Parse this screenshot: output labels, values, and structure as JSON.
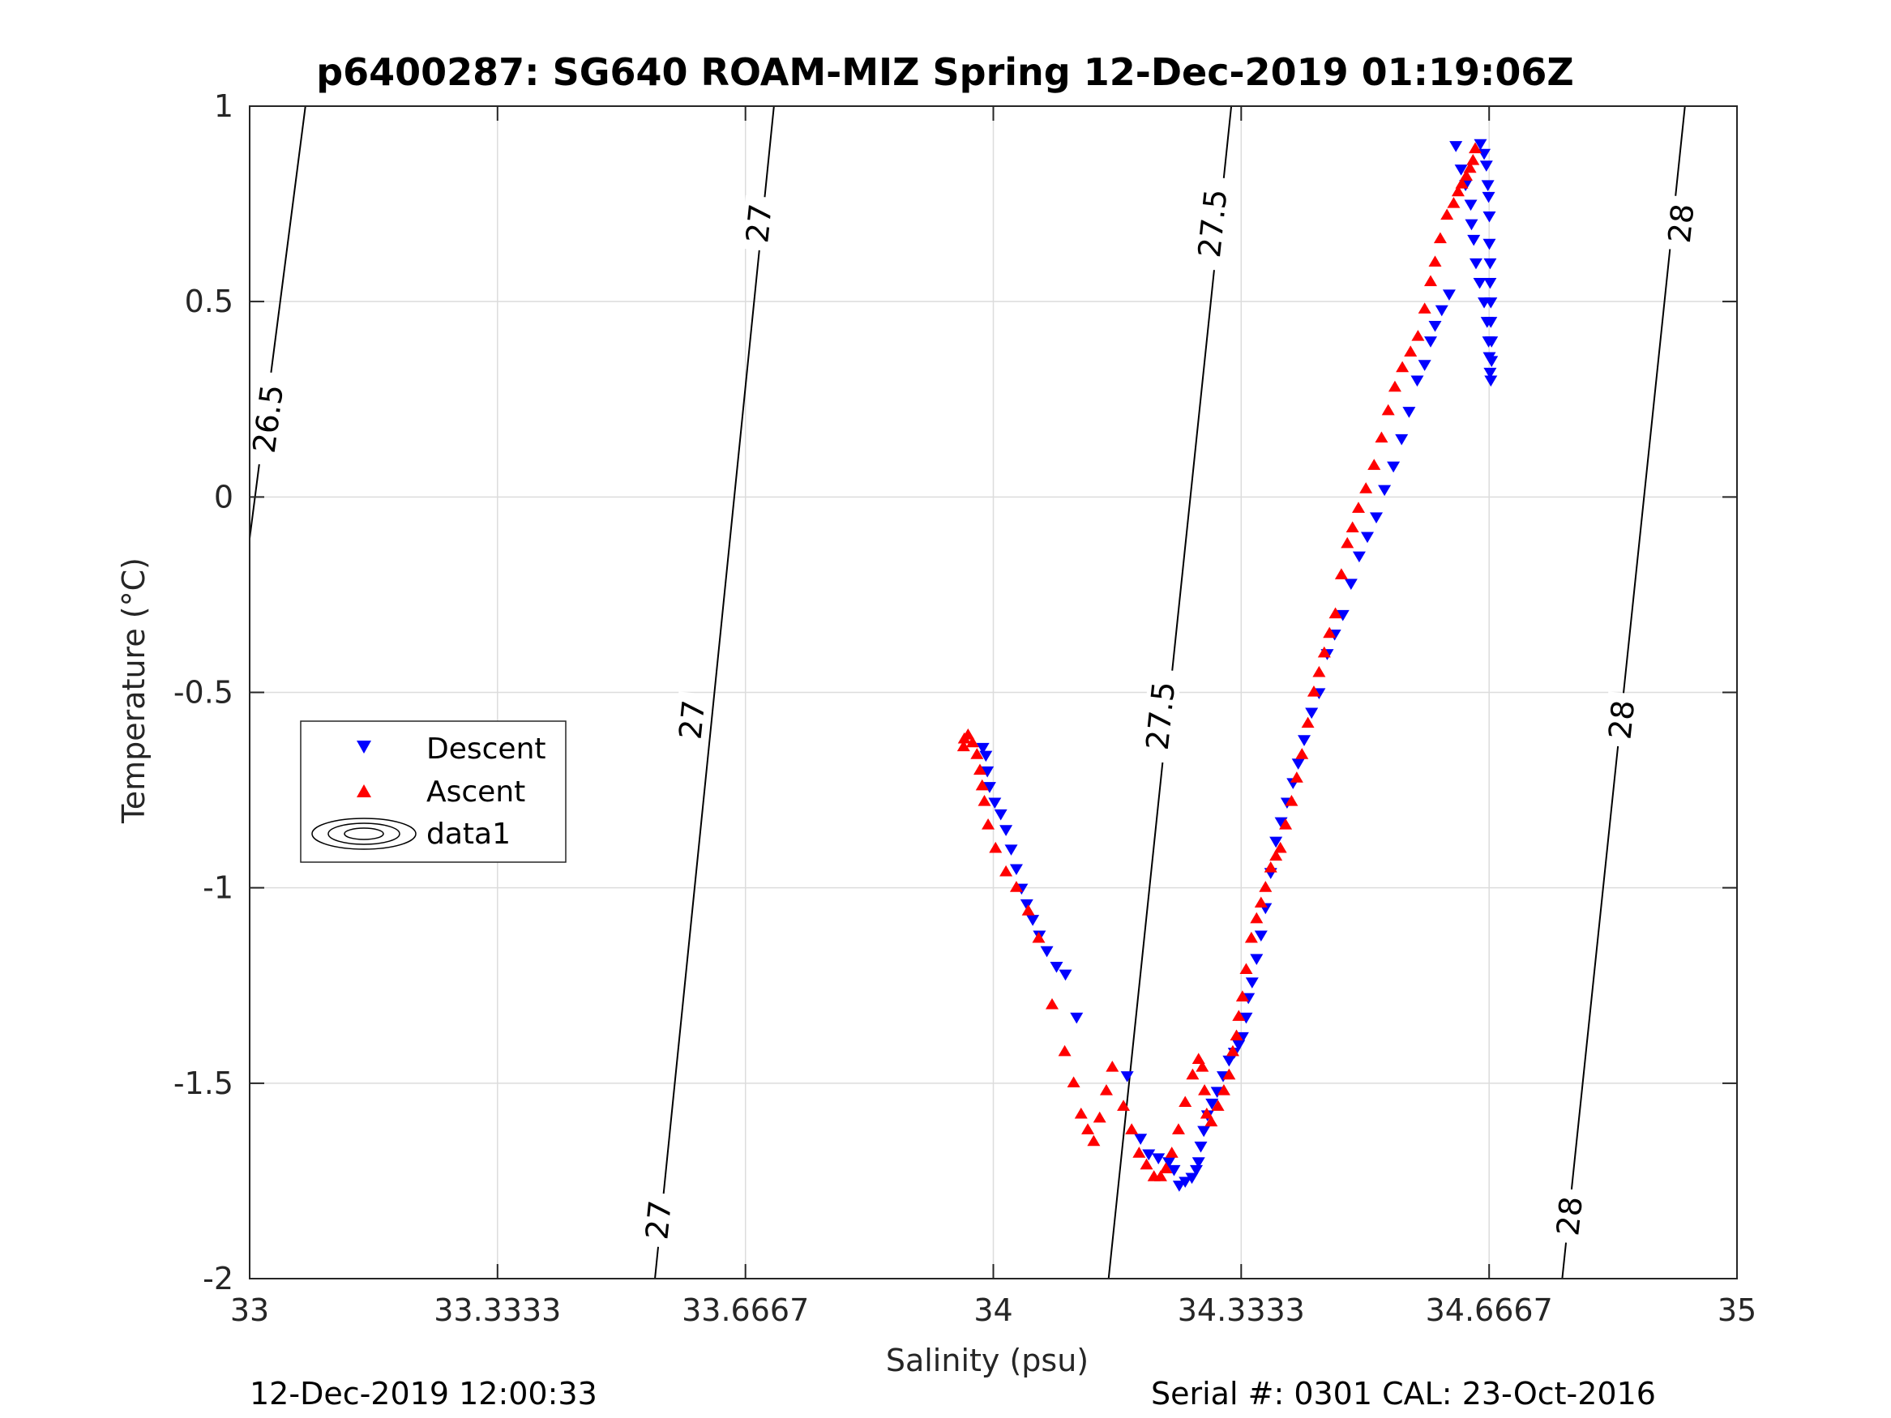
{
  "chart_data": {
    "type": "scatter",
    "title": "p6400287: SG640 ROAM-MIZ Spring 12-Dec-2019 01:19:06Z",
    "xlabel": "Salinity (psu)",
    "ylabel": "Temperature (°C)",
    "xlim": [
      33,
      35
    ],
    "ylim": [
      -2,
      1
    ],
    "xticks": [
      33,
      33.3333,
      33.6667,
      34,
      34.3333,
      34.6667,
      35
    ],
    "xtick_labels": [
      "33",
      "33.3333",
      "33.6667",
      "34",
      "34.3333",
      "34.6667",
      "35"
    ],
    "yticks": [
      -2,
      -1.5,
      -1,
      -0.5,
      0,
      0.5,
      1
    ],
    "ytick_labels": [
      "-2",
      "-1.5",
      "-1",
      "-0.5",
      "0",
      "0.5",
      "1"
    ],
    "grid": true,
    "legend_position": "left-middle",
    "legend": [
      {
        "label": "Descent",
        "marker": "triangle-down",
        "color": "#0000ff"
      },
      {
        "label": "Ascent",
        "marker": "triangle-up",
        "color": "#ff0000"
      },
      {
        "label": "data1",
        "marker": "contour-ellipses",
        "color": "#000000"
      }
    ],
    "isopycnals": [
      {
        "label": "26.5",
        "line": [
          [
            32.995,
            -0.18
          ],
          [
            33.075,
            1.0
          ]
        ],
        "label_positions": [
          [
            33.025,
            0.2
          ]
        ]
      },
      {
        "label": "27",
        "line": [
          [
            33.545,
            -2.0
          ],
          [
            33.705,
            1.0
          ]
        ],
        "label_positions": [
          [
            33.55,
            -1.85
          ],
          [
            33.595,
            -0.57
          ],
          [
            33.685,
            0.7
          ]
        ]
      },
      {
        "label": "27.5",
        "line": [
          [
            34.155,
            -2.0
          ],
          [
            34.32,
            1.0
          ]
        ],
        "label_positions": [
          [
            34.225,
            -0.56
          ],
          [
            34.295,
            0.7
          ]
        ]
      },
      {
        "label": "28",
        "line": [
          [
            34.765,
            -2.0
          ],
          [
            34.93,
            1.0
          ]
        ],
        "label_positions": [
          [
            34.775,
            -1.84
          ],
          [
            34.845,
            -0.57
          ],
          [
            34.925,
            0.7
          ]
        ]
      }
    ],
    "series": [
      {
        "name": "Descent",
        "marker": "triangle-down",
        "color": "#0000ff",
        "x": [
          34.655,
          34.66,
          34.663,
          34.665,
          34.666,
          34.667,
          34.667,
          34.668,
          34.668,
          34.669,
          34.669,
          34.67,
          34.67,
          34.669,
          34.668,
          34.667,
          34.666,
          34.664,
          34.66,
          34.654,
          34.649,
          34.646,
          34.643,
          34.642,
          34.635,
          34.629,
          34.622,
          34.613,
          34.603,
          34.594,
          34.588,
          34.58,
          34.57,
          34.559,
          34.549,
          34.538,
          34.526,
          34.515,
          34.503,
          34.492,
          34.481,
          34.47,
          34.459,
          34.449,
          34.438,
          34.428,
          34.418,
          34.41,
          34.403,
          34.395,
          34.387,
          34.38,
          34.373,
          34.366,
          34.36,
          34.354,
          34.348,
          34.343,
          34.34,
          34.335,
          34.33,
          34.324,
          34.317,
          34.309,
          34.301,
          34.294,
          34.288,
          34.283,
          34.279,
          34.276,
          34.273,
          34.267,
          34.258,
          34.25,
          34.243,
          34.236,
          34.222,
          34.209,
          34.198,
          34.18,
          34.112,
          34.097,
          34.085,
          34.072,
          34.062,
          34.053,
          34.045,
          34.038,
          34.031,
          34.024,
          34.017,
          34.01,
          34.002,
          33.995,
          33.992,
          33.99,
          33.986
        ],
        "y": [
          0.905,
          0.88,
          0.85,
          0.8,
          0.77,
          0.72,
          0.65,
          0.6,
          0.55,
          0.5,
          0.45,
          0.4,
          0.35,
          0.3,
          0.32,
          0.36,
          0.4,
          0.45,
          0.5,
          0.55,
          0.6,
          0.66,
          0.7,
          0.75,
          0.8,
          0.84,
          0.9,
          0.52,
          0.48,
          0.44,
          0.4,
          0.34,
          0.3,
          0.22,
          0.15,
          0.08,
          0.02,
          -0.05,
          -0.1,
          -0.15,
          -0.22,
          -0.3,
          -0.35,
          -0.4,
          -0.5,
          -0.55,
          -0.62,
          -0.68,
          -0.73,
          -0.78,
          -0.83,
          -0.88,
          -0.96,
          -1.05,
          -1.12,
          -1.18,
          -1.24,
          -1.28,
          -1.33,
          -1.38,
          -1.4,
          -1.42,
          -1.44,
          -1.48,
          -1.52,
          -1.55,
          -1.58,
          -1.62,
          -1.66,
          -1.7,
          -1.72,
          -1.74,
          -1.75,
          -1.76,
          -1.72,
          -1.7,
          -1.69,
          -1.68,
          -1.64,
          -1.48,
          -1.33,
          -1.22,
          -1.2,
          -1.16,
          -1.12,
          -1.08,
          -1.04,
          -1.0,
          -0.95,
          -0.9,
          -0.85,
          -0.81,
          -0.78,
          -0.74,
          -0.7,
          -0.66,
          -0.64
        ]
      },
      {
        "name": "Ascent",
        "marker": "triangle-up",
        "color": "#ff0000",
        "x": [
          34.648,
          34.645,
          34.641,
          34.636,
          34.63,
          34.625,
          34.619,
          34.61,
          34.601,
          34.594,
          34.588,
          34.58,
          34.571,
          34.561,
          34.55,
          34.54,
          34.531,
          34.522,
          34.512,
          34.501,
          34.491,
          34.483,
          34.476,
          34.468,
          34.46,
          34.452,
          34.445,
          34.438,
          34.431,
          34.423,
          34.415,
          34.408,
          34.401,
          34.393,
          34.386,
          34.38,
          34.373,
          34.366,
          34.36,
          34.354,
          34.347,
          34.34,
          34.335,
          34.33,
          34.327,
          34.322,
          34.317,
          34.31,
          34.302,
          34.293,
          34.287,
          34.284,
          34.281,
          34.276,
          34.268,
          34.258,
          34.249,
          34.24,
          34.232,
          34.225,
          34.216,
          34.206,
          34.196,
          34.186,
          34.175,
          34.16,
          34.152,
          34.143,
          34.135,
          34.127,
          34.118,
          34.108,
          34.096,
          34.079,
          34.061,
          34.047,
          34.031,
          34.017,
          34.003,
          33.993,
          33.988,
          33.985,
          33.982,
          33.978,
          33.972,
          33.966,
          33.961,
          33.96
        ],
        "y": [
          0.89,
          0.86,
          0.84,
          0.82,
          0.8,
          0.78,
          0.75,
          0.72,
          0.66,
          0.6,
          0.55,
          0.48,
          0.41,
          0.37,
          0.33,
          0.28,
          0.22,
          0.15,
          0.08,
          0.02,
          -0.03,
          -0.08,
          -0.12,
          -0.2,
          -0.3,
          -0.35,
          -0.4,
          -0.45,
          -0.5,
          -0.58,
          -0.66,
          -0.72,
          -0.78,
          -0.84,
          -0.9,
          -0.92,
          -0.95,
          -1.0,
          -1.04,
          -1.08,
          -1.13,
          -1.21,
          -1.28,
          -1.33,
          -1.38,
          -1.42,
          -1.48,
          -1.52,
          -1.56,
          -1.6,
          -1.58,
          -1.52,
          -1.46,
          -1.44,
          -1.48,
          -1.55,
          -1.62,
          -1.68,
          -1.72,
          -1.74,
          -1.74,
          -1.71,
          -1.68,
          -1.62,
          -1.56,
          -1.46,
          -1.52,
          -1.59,
          -1.65,
          -1.62,
          -1.58,
          -1.5,
          -1.42,
          -1.3,
          -1.13,
          -1.06,
          -1.0,
          -0.96,
          -0.9,
          -0.84,
          -0.78,
          -0.74,
          -0.7,
          -0.66,
          -0.63,
          -0.61,
          -0.62,
          -0.64
        ]
      }
    ]
  },
  "footer": {
    "left": "12-Dec-2019 12:00:33",
    "right": "Serial #: 0301  CAL: 23-Oct-2016"
  }
}
